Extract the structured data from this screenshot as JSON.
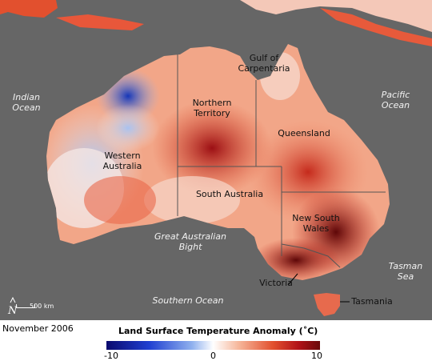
{
  "labels": {
    "gulf": "Gulf of\nCarpentaria",
    "indian_ocean": "Indian\nOcean",
    "pacific_ocean": "Pacific\nOcean",
    "northern_territory": "Northern\nTerritory",
    "queensland": "Queensland",
    "western_australia": "Western\nAustralia",
    "south_australia": "South Australia",
    "new_south_wales": "New South\nWales",
    "great_australian_bight": "Great Australian\nBight",
    "tasman_sea": "Tasman\nSea",
    "victoria": "Victoria",
    "southern_ocean": "Southern Ocean",
    "tasmania": "Tasmania"
  },
  "scale": {
    "label": "500 km",
    "north": "N"
  },
  "date": "November 2006",
  "legend": {
    "title": "Land Surface Temperature Anomaly  (˚C)",
    "min_label": "-10",
    "mid_label": "0",
    "max_label": "10",
    "min_color": "#0a0a6e",
    "mid_color": "#ffffff",
    "max_color": "#6a0a0a"
  },
  "colors": {
    "ocean": "#666666",
    "hot": "#b11218",
    "warm": "#e2502e",
    "cold": "#1f3fd1"
  }
}
